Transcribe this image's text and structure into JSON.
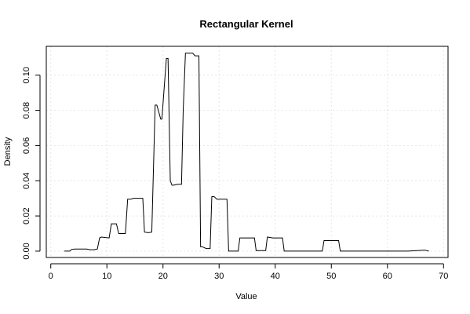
{
  "chart_data": {
    "type": "line",
    "title": "Rectangular Kernel",
    "xlabel": "Value",
    "ylabel": "Density",
    "xlim": [
      -0.8,
      70.8
    ],
    "ylim": [
      -0.0036,
      0.1164
    ],
    "x_ticks": [
      0,
      10,
      20,
      30,
      40,
      50,
      60,
      70
    ],
    "y_ticks": [
      0.0,
      0.02,
      0.04,
      0.06,
      0.08,
      0.1
    ],
    "x_tick_labels": [
      "0",
      "10",
      "20",
      "30",
      "40",
      "50",
      "60",
      "70"
    ],
    "y_tick_labels": [
      "0.00",
      "0.02",
      "0.04",
      "0.06",
      "0.08",
      "0.10"
    ],
    "grid": true,
    "legend": "none",
    "line_color": "#000000",
    "series": [
      {
        "x": [
          2.4,
          3.4,
          3.7,
          4.3,
          6.4,
          7.0,
          7.7,
          8.3,
          8.7,
          9.0,
          10.4,
          10.8,
          11.7,
          12.1,
          13.3,
          13.7,
          14.3,
          14.7,
          16.4,
          16.7,
          17.4,
          18.0,
          18.6,
          18.9,
          19.6,
          19.8,
          20.6,
          20.9,
          21.3,
          21.6,
          21.9,
          22.6,
          23.3,
          23.6,
          24.0,
          25.3,
          25.7,
          26.4,
          26.7,
          27.0,
          27.7,
          28.4,
          28.7,
          29.1,
          29.6,
          30.0,
          31.4,
          31.7,
          33.4,
          33.7,
          36.3,
          36.6,
          38.3,
          38.6,
          39.6,
          41.3,
          41.6,
          48.4,
          48.7,
          51.3,
          51.6,
          63.7,
          66.4,
          66.7,
          67.4
        ],
        "y": [
          0.0,
          0.0,
          0.001,
          0.0012,
          0.0012,
          0.0008,
          0.0008,
          0.0012,
          0.0075,
          0.008,
          0.0075,
          0.0155,
          0.0155,
          0.01,
          0.01,
          0.0295,
          0.0295,
          0.03,
          0.03,
          0.0108,
          0.0105,
          0.0108,
          0.083,
          0.083,
          0.075,
          0.075,
          0.1095,
          0.1095,
          0.04,
          0.0375,
          0.0375,
          0.038,
          0.038,
          0.08,
          0.1125,
          0.1125,
          0.111,
          0.111,
          0.0025,
          0.0025,
          0.0015,
          0.0015,
          0.031,
          0.031,
          0.0295,
          0.0295,
          0.0295,
          0.0,
          0.0,
          0.0075,
          0.0075,
          0.0003,
          0.0003,
          0.008,
          0.0075,
          0.0075,
          0.0,
          0.0,
          0.006,
          0.006,
          0.0,
          0.0,
          0.0005,
          0.0005,
          0.0
        ]
      }
    ]
  }
}
